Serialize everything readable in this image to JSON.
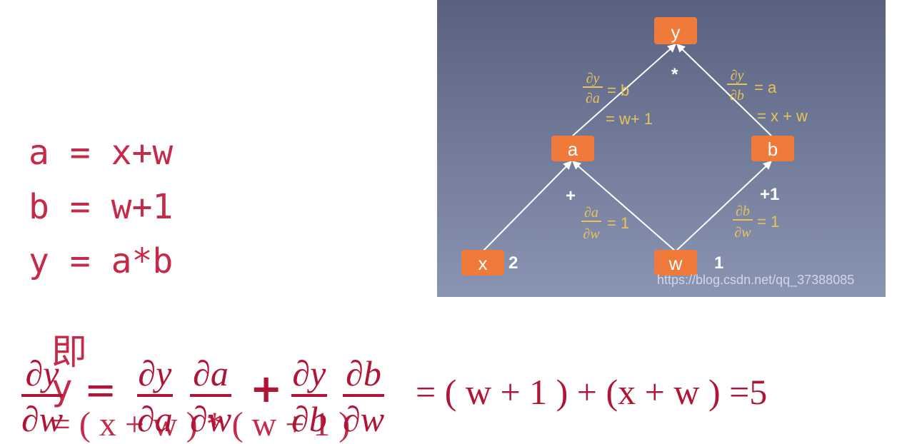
{
  "equations": {
    "line1": "a = x+w",
    "line2": "b = w+1",
    "line3": "y = a*b",
    "line4_prefix": "即",
    "line4_y": "y",
    "line4_rest": "= ( x + w ) * ( w + 1 )"
  },
  "graph": {
    "nodes": {
      "y": "y",
      "a": "a",
      "b": "b",
      "x": "x",
      "w": "w"
    },
    "values": {
      "x": "2",
      "w": "1"
    },
    "ops": {
      "top": "*",
      "left": "+",
      "right": "+1"
    },
    "grads": {
      "dy_da_num": "∂y",
      "dy_da_den": "∂a",
      "dy_da_eq": "= b",
      "dy_da_eq2": "= w+ 1",
      "dy_db_num": "∂y",
      "dy_db_den": "∂b",
      "dy_db_eq": "= a",
      "dy_db_eq2": "= x + w",
      "da_dw_num": "∂a",
      "da_dw_den": "∂w",
      "da_dw_eq": "= 1",
      "db_dw_num": "∂b",
      "db_dw_den": "∂w",
      "db_dw_eq": "= 1"
    },
    "watermark": "https://blog.csdn.net/qq_37388085",
    "colors": {
      "node": "#f07a3a",
      "label": "#e6c45a",
      "edge": "#ffffff"
    }
  },
  "chain": {
    "lhs_num": "∂y",
    "lhs_den": "∂w",
    "eq": "=",
    "t1a_num": "∂y",
    "t1a_den": "∂a",
    "t1b_num": "∂a",
    "t1b_den": "∂w",
    "plus": "+",
    "t2a_num": "∂y",
    "t2a_den": "∂b",
    "t2b_num": "∂b",
    "t2b_den": "∂w",
    "result": "= ( w + 1 ) + (x + w ) =5"
  }
}
